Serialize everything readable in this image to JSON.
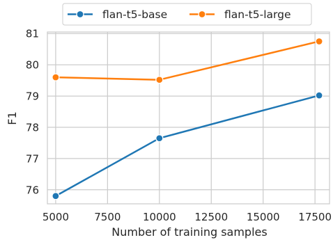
{
  "chart_data": {
    "type": "line",
    "xlabel": "Number of training samples",
    "ylabel": "F1",
    "xlim": [
      4600,
      18200
    ],
    "ylim": [
      75.55,
      81.05
    ],
    "xticks": [
      5000,
      7500,
      10000,
      12500,
      15000,
      17500
    ],
    "yticks": [
      76,
      77,
      78,
      79,
      80,
      81
    ],
    "grid": true,
    "legend_position": "top-center",
    "series": [
      {
        "name": "flan-t5-base",
        "color": "#1f77b4",
        "x": [
          5000,
          10000,
          17700
        ],
        "y": [
          75.8,
          77.65,
          79.02
        ]
      },
      {
        "name": "flan-t5-large",
        "color": "#ff7f0e",
        "x": [
          5000,
          10000,
          17700
        ],
        "y": [
          79.6,
          79.52,
          80.75
        ]
      }
    ]
  }
}
